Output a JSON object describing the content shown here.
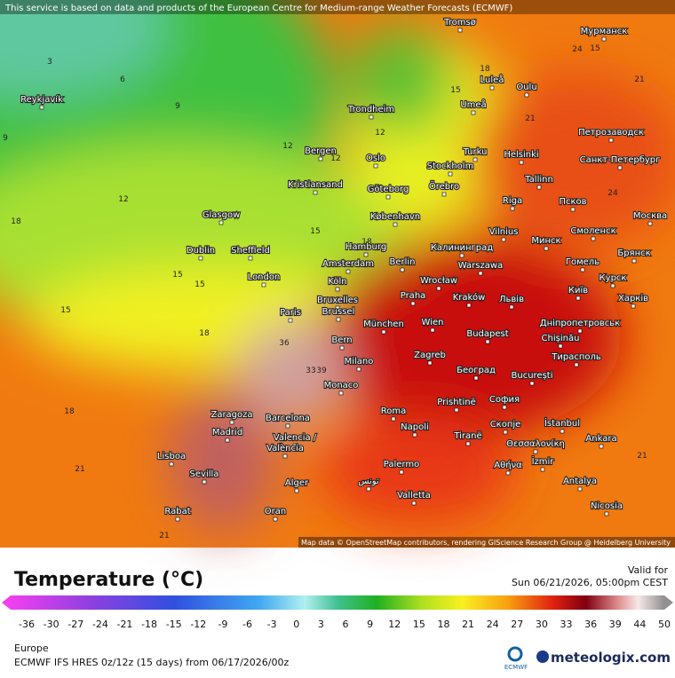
{
  "header": {
    "notice": "This service is based on data and products of the European Centre for Medium-range Weather Forecasts (ECMWF)"
  },
  "map": {
    "cities": [
      "Tromsø",
      "Мурманск",
      "Reykjavík",
      "Luleå",
      "Oulu",
      "Umeå",
      "Trondheim",
      "Петрозаводск",
      "Bergen",
      "Oslo",
      "Stockholm",
      "Turku",
      "Helsinki",
      "Санкт-Петербург",
      "Kristiansand",
      "Göteborg",
      "Örebro",
      "Tallinn",
      "Псков",
      "Glasgow",
      "København",
      "Riga",
      "Москва",
      "Vilnius",
      "Минск",
      "Смоленск",
      "Dublin",
      "Sheffield",
      "Hamburg",
      "Калининград",
      "Гомель",
      "Брянск",
      "Amsterdam",
      "Berlin",
      "Warszawa",
      "London",
      "Köln",
      "Wrocław",
      "Київ",
      "Курск",
      "Bruxelles",
      "Brussel",
      "Praha",
      "Kraków",
      "Львів",
      "Харків",
      "Paris",
      "München",
      "Wien",
      "Дніпропетровськ",
      "Budapest",
      "Chișinău",
      "Bern",
      "Zagreb",
      "Тирасполь",
      "Milano",
      "Београд",
      "București",
      "Monaco",
      "Prishtinë",
      "София",
      "Zaragoza",
      "Barcelona",
      "Roma",
      "İstanbul",
      "Madrid",
      "Napoli",
      "Tiranë",
      "Скопје",
      "Θεσσαλονίκη",
      "Ankara",
      "Valencia /",
      "València",
      "Lisboa",
      "İzmir",
      "Αθήνα",
      "Palermo",
      "Sevilla",
      "Alger",
      "تونس",
      "Antalya",
      "Valletta",
      "Nicosia",
      "Rabat",
      "Oran"
    ],
    "contours": [
      3,
      6,
      9,
      9,
      12,
      12,
      15,
      15,
      18,
      18,
      21,
      21,
      36,
      39,
      33,
      18,
      15,
      15,
      21,
      24,
      24,
      21,
      18,
      15,
      12,
      12,
      15,
      18,
      21
    ],
    "attribution": "Map data © OpenStreetMap contributors, rendering GIScience Research Group @ Heidelberg University"
  },
  "legend": {
    "title": "Temperature (°C)",
    "ticks": [
      -36,
      -30,
      -27,
      -24,
      -21,
      -18,
      -15,
      -12,
      -9,
      -6,
      -3,
      0,
      3,
      6,
      9,
      12,
      15,
      18,
      21,
      24,
      27,
      30,
      33,
      36,
      39,
      44,
      50
    ]
  },
  "footer": {
    "valid_label": "Valid for",
    "valid_time": "Sun 06/21/2026, 05:00pm CEST",
    "region": "Europe",
    "model": "ECMWF IFS HRES 0z/12z (15 days) from 06/17/2026/00z",
    "logo_ecmwf": "ECMWF",
    "logo_site": "meteologix.com"
  }
}
